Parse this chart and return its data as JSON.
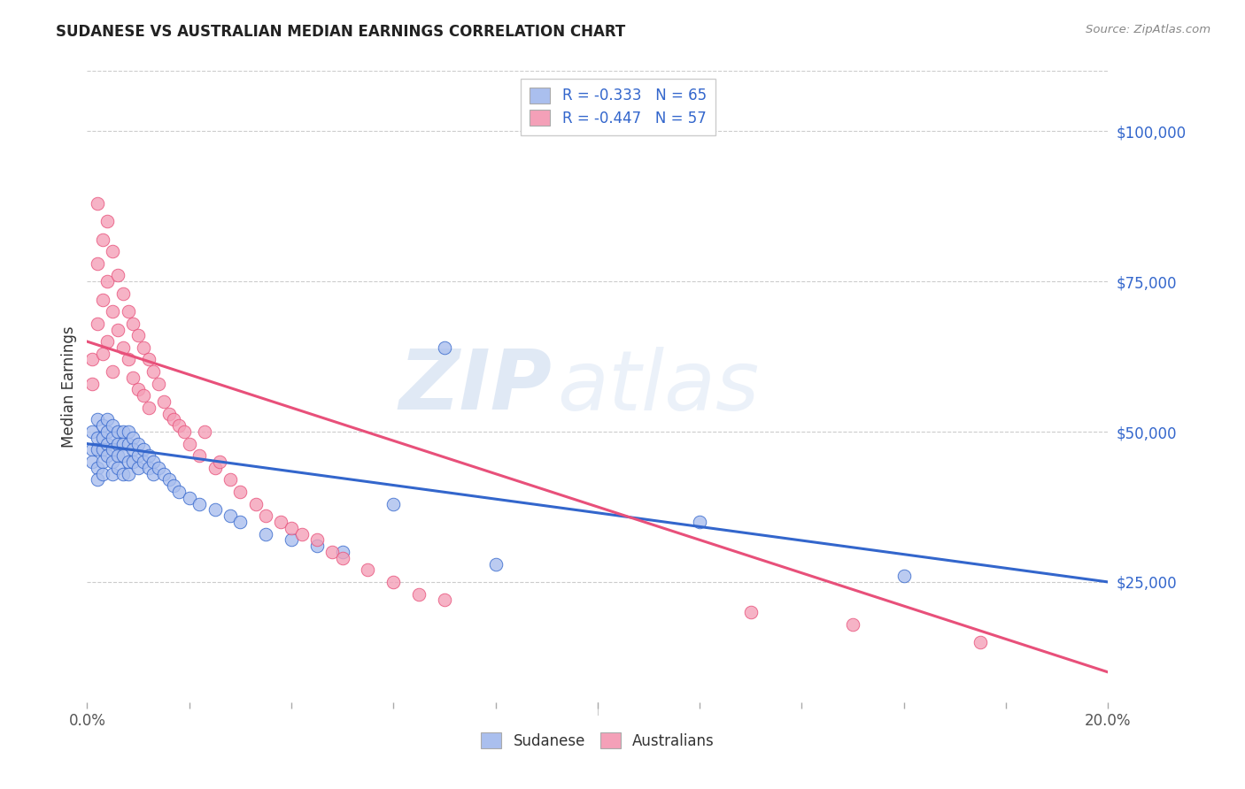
{
  "title": "SUDANESE VS AUSTRALIAN MEDIAN EARNINGS CORRELATION CHART",
  "source": "Source: ZipAtlas.com",
  "ylabel": "Median Earnings",
  "y_tick_labels": [
    "$25,000",
    "$50,000",
    "$75,000",
    "$100,000"
  ],
  "y_tick_values": [
    25000,
    50000,
    75000,
    100000
  ],
  "xlim": [
    0.0,
    0.2
  ],
  "ylim": [
    5000,
    110000
  ],
  "blue_label": "Sudanese",
  "pink_label": "Australians",
  "blue_R": -0.333,
  "blue_N": 65,
  "pink_R": -0.447,
  "pink_N": 57,
  "blue_color": "#AABFEE",
  "pink_color": "#F4A0B8",
  "blue_line_color": "#3366CC",
  "pink_line_color": "#E8507A",
  "blue_line_y0": 48000,
  "blue_line_y1": 25000,
  "pink_line_y0": 65000,
  "pink_line_y1": 10000,
  "blue_scatter_x": [
    0.001,
    0.001,
    0.001,
    0.002,
    0.002,
    0.002,
    0.002,
    0.002,
    0.003,
    0.003,
    0.003,
    0.003,
    0.003,
    0.004,
    0.004,
    0.004,
    0.004,
    0.005,
    0.005,
    0.005,
    0.005,
    0.005,
    0.006,
    0.006,
    0.006,
    0.006,
    0.007,
    0.007,
    0.007,
    0.007,
    0.008,
    0.008,
    0.008,
    0.008,
    0.009,
    0.009,
    0.009,
    0.01,
    0.01,
    0.01,
    0.011,
    0.011,
    0.012,
    0.012,
    0.013,
    0.013,
    0.014,
    0.015,
    0.016,
    0.017,
    0.018,
    0.02,
    0.022,
    0.025,
    0.028,
    0.03,
    0.035,
    0.04,
    0.045,
    0.05,
    0.06,
    0.07,
    0.08,
    0.12,
    0.16
  ],
  "blue_scatter_y": [
    50000,
    47000,
    45000,
    52000,
    49000,
    47000,
    44000,
    42000,
    51000,
    49000,
    47000,
    45000,
    43000,
    52000,
    50000,
    48000,
    46000,
    51000,
    49000,
    47000,
    45000,
    43000,
    50000,
    48000,
    46000,
    44000,
    50000,
    48000,
    46000,
    43000,
    50000,
    48000,
    45000,
    43000,
    49000,
    47000,
    45000,
    48000,
    46000,
    44000,
    47000,
    45000,
    46000,
    44000,
    45000,
    43000,
    44000,
    43000,
    42000,
    41000,
    40000,
    39000,
    38000,
    37000,
    36000,
    35000,
    33000,
    32000,
    31000,
    30000,
    38000,
    64000,
    28000,
    35000,
    26000
  ],
  "pink_scatter_x": [
    0.001,
    0.001,
    0.002,
    0.002,
    0.002,
    0.003,
    0.003,
    0.003,
    0.004,
    0.004,
    0.004,
    0.005,
    0.005,
    0.005,
    0.006,
    0.006,
    0.007,
    0.007,
    0.008,
    0.008,
    0.009,
    0.009,
    0.01,
    0.01,
    0.011,
    0.011,
    0.012,
    0.012,
    0.013,
    0.014,
    0.015,
    0.016,
    0.017,
    0.018,
    0.019,
    0.02,
    0.022,
    0.023,
    0.025,
    0.026,
    0.028,
    0.03,
    0.033,
    0.035,
    0.038,
    0.04,
    0.042,
    0.045,
    0.048,
    0.05,
    0.055,
    0.06,
    0.065,
    0.07,
    0.13,
    0.15,
    0.175
  ],
  "pink_scatter_y": [
    62000,
    58000,
    88000,
    78000,
    68000,
    82000,
    72000,
    63000,
    85000,
    75000,
    65000,
    80000,
    70000,
    60000,
    76000,
    67000,
    73000,
    64000,
    70000,
    62000,
    68000,
    59000,
    66000,
    57000,
    64000,
    56000,
    62000,
    54000,
    60000,
    58000,
    55000,
    53000,
    52000,
    51000,
    50000,
    48000,
    46000,
    50000,
    44000,
    45000,
    42000,
    40000,
    38000,
    36000,
    35000,
    34000,
    33000,
    32000,
    30000,
    29000,
    27000,
    25000,
    23000,
    22000,
    20000,
    18000,
    15000
  ],
  "watermark_zip": "ZIP",
  "watermark_atlas": "atlas",
  "background_color": "#ffffff",
  "grid_color": "#cccccc"
}
